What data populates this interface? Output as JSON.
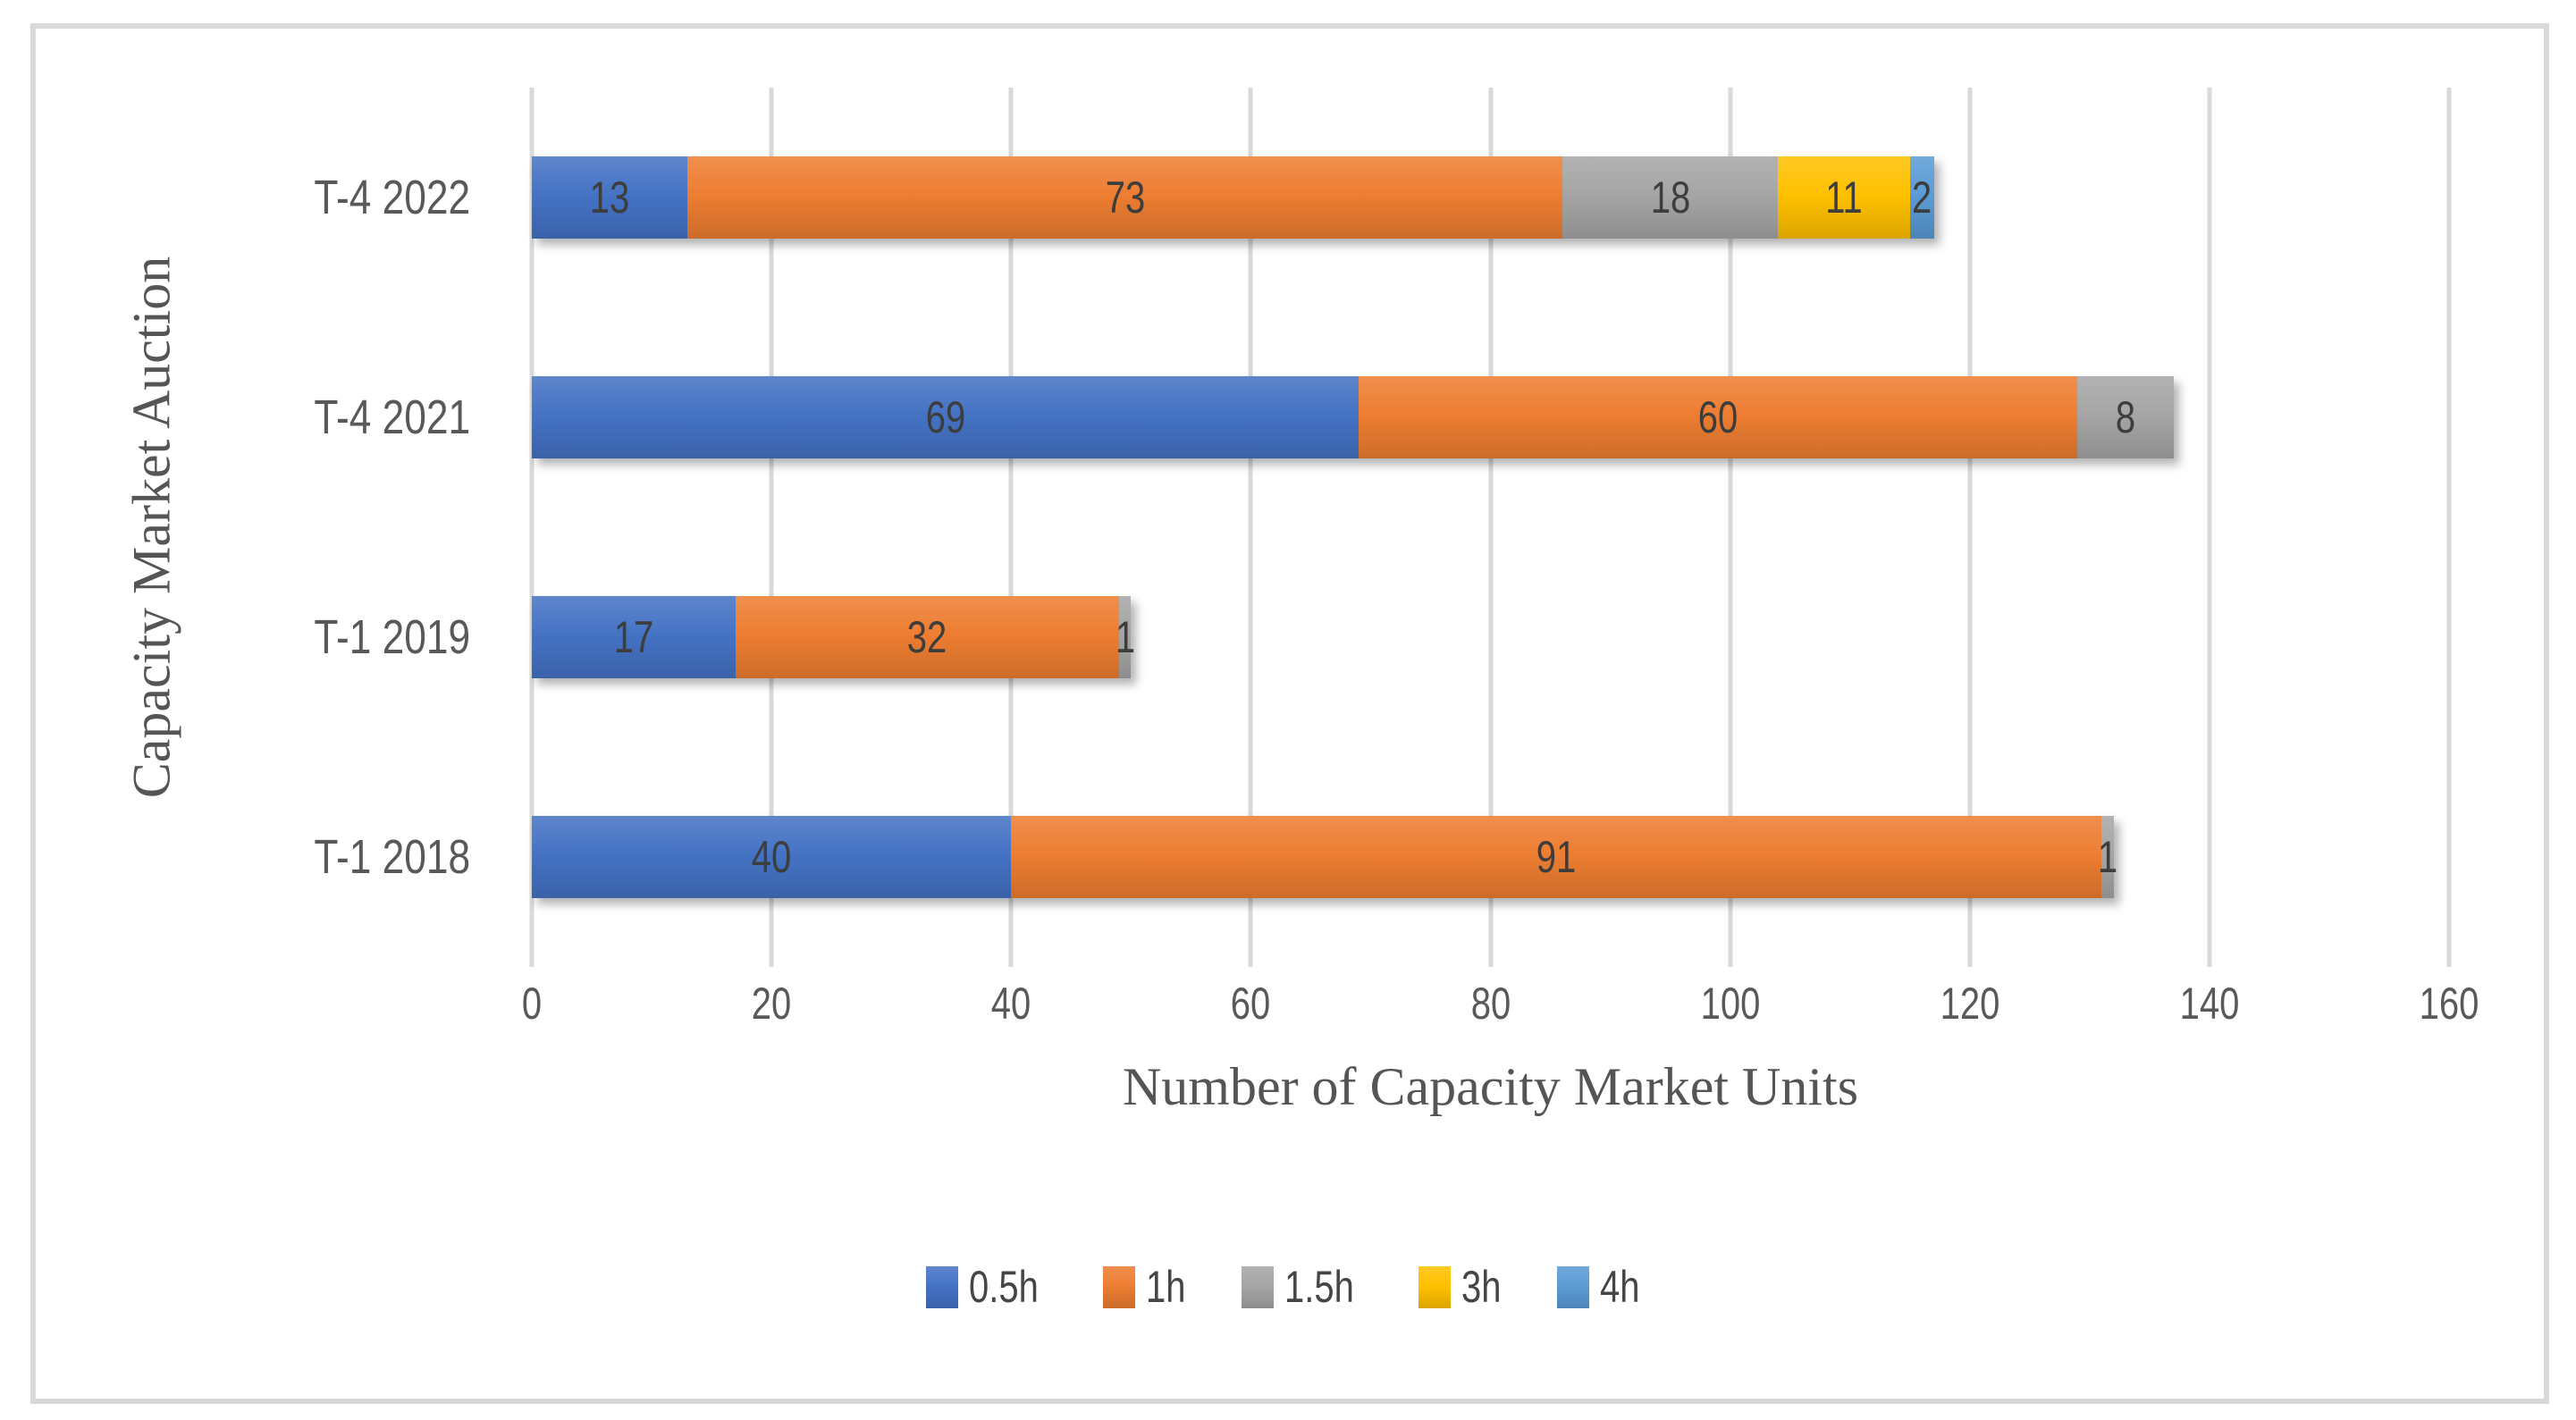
{
  "figure": {
    "background_color": "#ffffff",
    "border_color": "#d9d9d9",
    "gridline_color": "#d9d9d9",
    "axis_text_color": "#595959",
    "data_label_color": "#3d3d3d"
  },
  "chart_data": {
    "type": "bar",
    "orientation": "horizontal",
    "stacked": true,
    "title": "",
    "xlabel": "Number of Capacity Market Units",
    "ylabel": "Capacity Market Auction",
    "xlim": [
      0,
      160
    ],
    "xticks": [
      "0",
      "20",
      "40",
      "60",
      "80",
      "100",
      "120",
      "140",
      "160"
    ],
    "grid": "vertical",
    "legend_position": "bottom",
    "data_labels": true,
    "categories": [
      "T-4 2022",
      "T-4 2021",
      "T-1 2019",
      "T-1 2018"
    ],
    "series": [
      {
        "name": "0.5h",
        "color": "#4472C4",
        "values": [
          13,
          69,
          17,
          40
        ]
      },
      {
        "name": "1h",
        "color": "#ED7D31",
        "values": [
          73,
          60,
          32,
          91
        ]
      },
      {
        "name": "1.5h",
        "color": "#A5A5A5",
        "values": [
          18,
          8,
          1,
          1
        ]
      },
      {
        "name": "3h",
        "color": "#FFC000",
        "values": [
          11,
          0,
          0,
          0
        ]
      },
      {
        "name": "4h",
        "color": "#5B9BD5",
        "values": [
          2,
          0,
          0,
          0
        ]
      }
    ],
    "bar_totals": [
      117,
      137,
      50,
      132
    ]
  }
}
